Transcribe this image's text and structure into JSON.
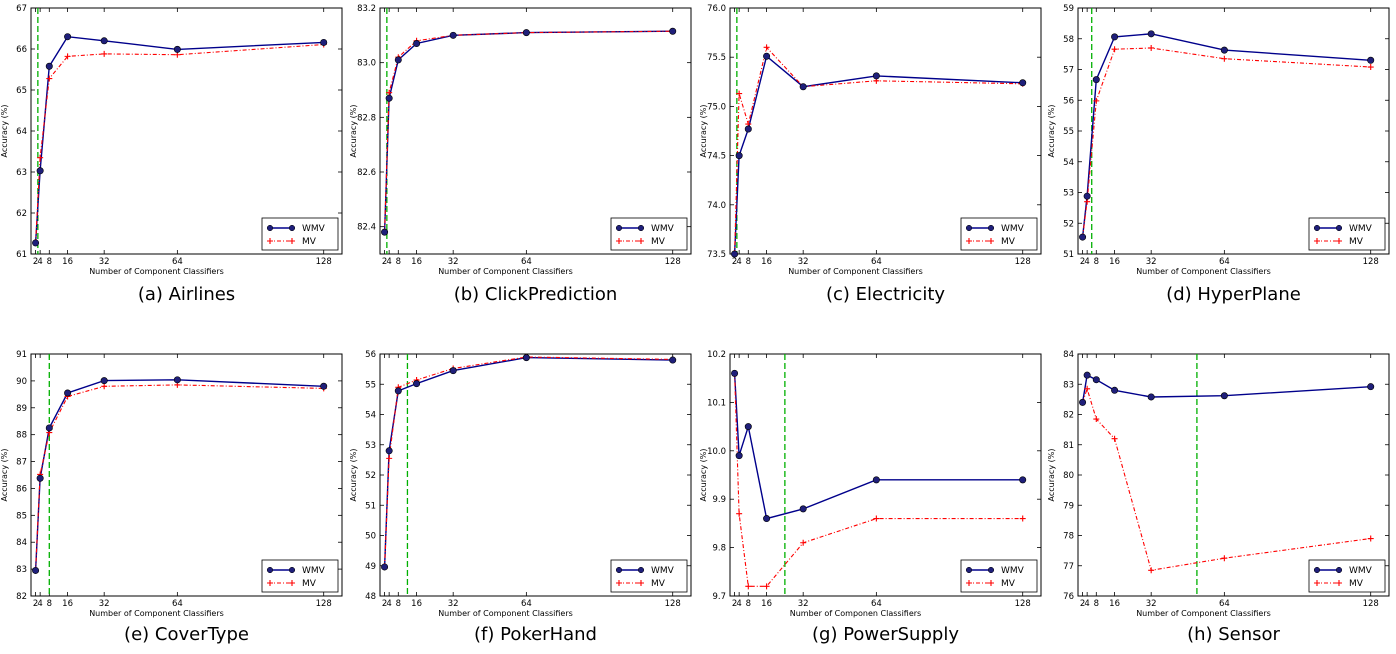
{
  "legend": {
    "wmv": "WMV",
    "mv": "MV"
  },
  "colors": {
    "wmv": "#00008b",
    "mv": "#ff0000",
    "marker": "#1f1f7a",
    "vline": "#00b000",
    "axis": "#000000"
  },
  "chart_data": [
    {
      "type": "line",
      "caption": "(a) Airlines",
      "xlabel": "Number of Component Classifiers",
      "ylabel": "Accuracy (%)",
      "xticks": [
        2,
        4,
        8,
        16,
        32,
        64,
        128
      ],
      "xlim": [
        0,
        136
      ],
      "ylim": [
        61,
        67
      ],
      "yticks": [
        61,
        62,
        63,
        64,
        65,
        66,
        67
      ],
      "ydecimals": 0,
      "vline": 3,
      "series": [
        {
          "name": "WMV",
          "x": [
            2,
            4,
            8,
            16,
            32,
            64,
            128
          ],
          "y": [
            61.27,
            63.03,
            65.58,
            66.3,
            66.2,
            65.99,
            66.16
          ]
        },
        {
          "name": "MV",
          "x": [
            2,
            4,
            8,
            16,
            32,
            64,
            128
          ],
          "y": [
            61.27,
            63.35,
            65.28,
            65.82,
            65.88,
            65.86,
            66.11
          ]
        }
      ]
    },
    {
      "type": "line",
      "caption": "(b) ClickPrediction",
      "xlabel": "Number of Component Classifiers",
      "ylabel": "Accuracy (%)",
      "xticks": [
        2,
        4,
        8,
        16,
        32,
        64,
        128
      ],
      "xlim": [
        0,
        136
      ],
      "ylim": [
        82.3,
        83.2
      ],
      "yticks": [
        82.4,
        82.6,
        82.8,
        83.0,
        83.2
      ],
      "ydecimals": 1,
      "vline": 3,
      "series": [
        {
          "name": "WMV",
          "x": [
            2,
            4,
            8,
            16,
            32,
            64,
            128
          ],
          "y": [
            82.38,
            82.87,
            83.01,
            83.07,
            83.1,
            83.11,
            83.115
          ]
        },
        {
          "name": "MV",
          "x": [
            2,
            4,
            8,
            16,
            32,
            64,
            128
          ],
          "y": [
            82.38,
            82.89,
            83.02,
            83.08,
            83.1,
            83.11,
            83.115
          ]
        }
      ]
    },
    {
      "type": "line",
      "caption": "(c) Electricity",
      "xlabel": "Number of Component Classifiers",
      "ylabel": "Accuracy (%)",
      "xticks": [
        2,
        4,
        8,
        16,
        32,
        64,
        128
      ],
      "xlim": [
        0,
        136
      ],
      "ylim": [
        73.5,
        76.0
      ],
      "yticks": [
        73.5,
        74.0,
        74.5,
        75.0,
        75.5,
        76.0
      ],
      "ydecimals": 1,
      "vline": 3,
      "series": [
        {
          "name": "WMV",
          "x": [
            2,
            4,
            8,
            16,
            32,
            64,
            128
          ],
          "y": [
            73.5,
            74.5,
            74.77,
            75.51,
            75.2,
            75.31,
            75.24
          ]
        },
        {
          "name": "MV",
          "x": [
            2,
            4,
            8,
            16,
            32,
            64,
            128
          ],
          "y": [
            73.5,
            75.13,
            74.82,
            75.6,
            75.2,
            75.26,
            75.23
          ]
        }
      ]
    },
    {
      "type": "line",
      "caption": "(d) HyperPlane",
      "xlabel": "Number of Component Classifiers",
      "ylabel": "Accuracy (%)",
      "xticks": [
        2,
        4,
        8,
        16,
        32,
        64,
        128
      ],
      "xlim": [
        0,
        136
      ],
      "ylim": [
        51,
        59
      ],
      "yticks": [
        51,
        52,
        53,
        54,
        55,
        56,
        57,
        58,
        59
      ],
      "ydecimals": 0,
      "vline": 6,
      "series": [
        {
          "name": "WMV",
          "x": [
            2,
            4,
            8,
            16,
            32,
            64,
            128
          ],
          "y": [
            51.55,
            52.88,
            56.67,
            58.06,
            58.16,
            57.63,
            57.3
          ]
        },
        {
          "name": "MV",
          "x": [
            2,
            4,
            8,
            16,
            32,
            64,
            128
          ],
          "y": [
            51.55,
            52.7,
            55.98,
            57.66,
            57.7,
            57.35,
            57.08
          ]
        }
      ]
    },
    {
      "type": "line",
      "caption": "(e) CoverType",
      "xlabel": "Number of Component Classifiers",
      "ylabel": "Accuracy (%)",
      "xticks": [
        2,
        4,
        8,
        16,
        32,
        64,
        128
      ],
      "xlim": [
        0,
        136
      ],
      "ylim": [
        82,
        91
      ],
      "yticks": [
        82,
        83,
        84,
        85,
        86,
        87,
        88,
        89,
        90,
        91
      ],
      "ydecimals": 0,
      "vline": 8,
      "series": [
        {
          "name": "WMV",
          "x": [
            2,
            4,
            8,
            16,
            32,
            64,
            128
          ],
          "y": [
            82.95,
            86.38,
            88.25,
            89.55,
            90.01,
            90.04,
            89.8
          ]
        },
        {
          "name": "MV",
          "x": [
            2,
            4,
            8,
            16,
            32,
            64,
            128
          ],
          "y": [
            82.95,
            86.52,
            88.08,
            89.42,
            89.8,
            89.85,
            89.72
          ]
        }
      ]
    },
    {
      "type": "line",
      "caption": "(f) PokerHand",
      "xlabel": "Number of Component Classifiers",
      "ylabel": "Accuracy (%)",
      "xticks": [
        2,
        4,
        8,
        16,
        32,
        64,
        128
      ],
      "xlim": [
        0,
        136
      ],
      "ylim": [
        48,
        56
      ],
      "yticks": [
        48,
        49,
        50,
        51,
        52,
        53,
        54,
        55,
        56
      ],
      "ydecimals": 0,
      "vline": 12,
      "series": [
        {
          "name": "WMV",
          "x": [
            2,
            4,
            8,
            16,
            32,
            64,
            128
          ],
          "y": [
            48.96,
            52.8,
            54.78,
            55.02,
            55.45,
            55.88,
            55.8
          ]
        },
        {
          "name": "MV",
          "x": [
            2,
            4,
            8,
            16,
            32,
            64,
            128
          ],
          "y": [
            48.96,
            52.55,
            54.9,
            55.14,
            55.52,
            55.9,
            55.82
          ]
        }
      ]
    },
    {
      "type": "line",
      "caption": "(g) PowerSupply",
      "xlabel": "Number of Componen  Classifiers",
      "ylabel": "Accuracy (%)",
      "xticks": [
        2,
        4,
        8,
        16,
        32,
        64,
        128
      ],
      "xlim": [
        0,
        136
      ],
      "ylim": [
        9.7,
        10.2
      ],
      "yticks": [
        9.7,
        9.8,
        9.9,
        10.0,
        10.1,
        10.2
      ],
      "ydecimals": 1,
      "vline": 24,
      "series": [
        {
          "name": "WMV",
          "x": [
            2,
            4,
            8,
            16,
            32,
            64,
            128
          ],
          "y": [
            10.16,
            9.99,
            10.05,
            9.86,
            9.88,
            9.94,
            9.94
          ]
        },
        {
          "name": "MV",
          "x": [
            2,
            4,
            8,
            16,
            32,
            64,
            128
          ],
          "y": [
            10.16,
            9.87,
            9.72,
            9.72,
            9.81,
            9.86,
            9.86
          ]
        }
      ]
    },
    {
      "type": "line",
      "caption": "(h) Sensor",
      "xlabel": "Number of Component Classifiers",
      "ylabel": "Accuracy (%)",
      "xticks": [
        2,
        4,
        8,
        16,
        32,
        64,
        128
      ],
      "xlim": [
        0,
        136
      ],
      "ylim": [
        76,
        84
      ],
      "yticks": [
        76,
        77,
        78,
        79,
        80,
        81,
        82,
        83,
        84
      ],
      "ydecimals": 0,
      "vline": 52,
      "series": [
        {
          "name": "WMV",
          "x": [
            2,
            4,
            8,
            16,
            32,
            64,
            128
          ],
          "y": [
            82.4,
            83.3,
            83.15,
            82.8,
            82.58,
            82.62,
            82.92
          ]
        },
        {
          "name": "MV",
          "x": [
            2,
            4,
            8,
            16,
            32,
            64,
            128
          ],
          "y": [
            82.4,
            82.85,
            81.85,
            81.2,
            76.85,
            77.25,
            77.9
          ]
        }
      ]
    }
  ]
}
